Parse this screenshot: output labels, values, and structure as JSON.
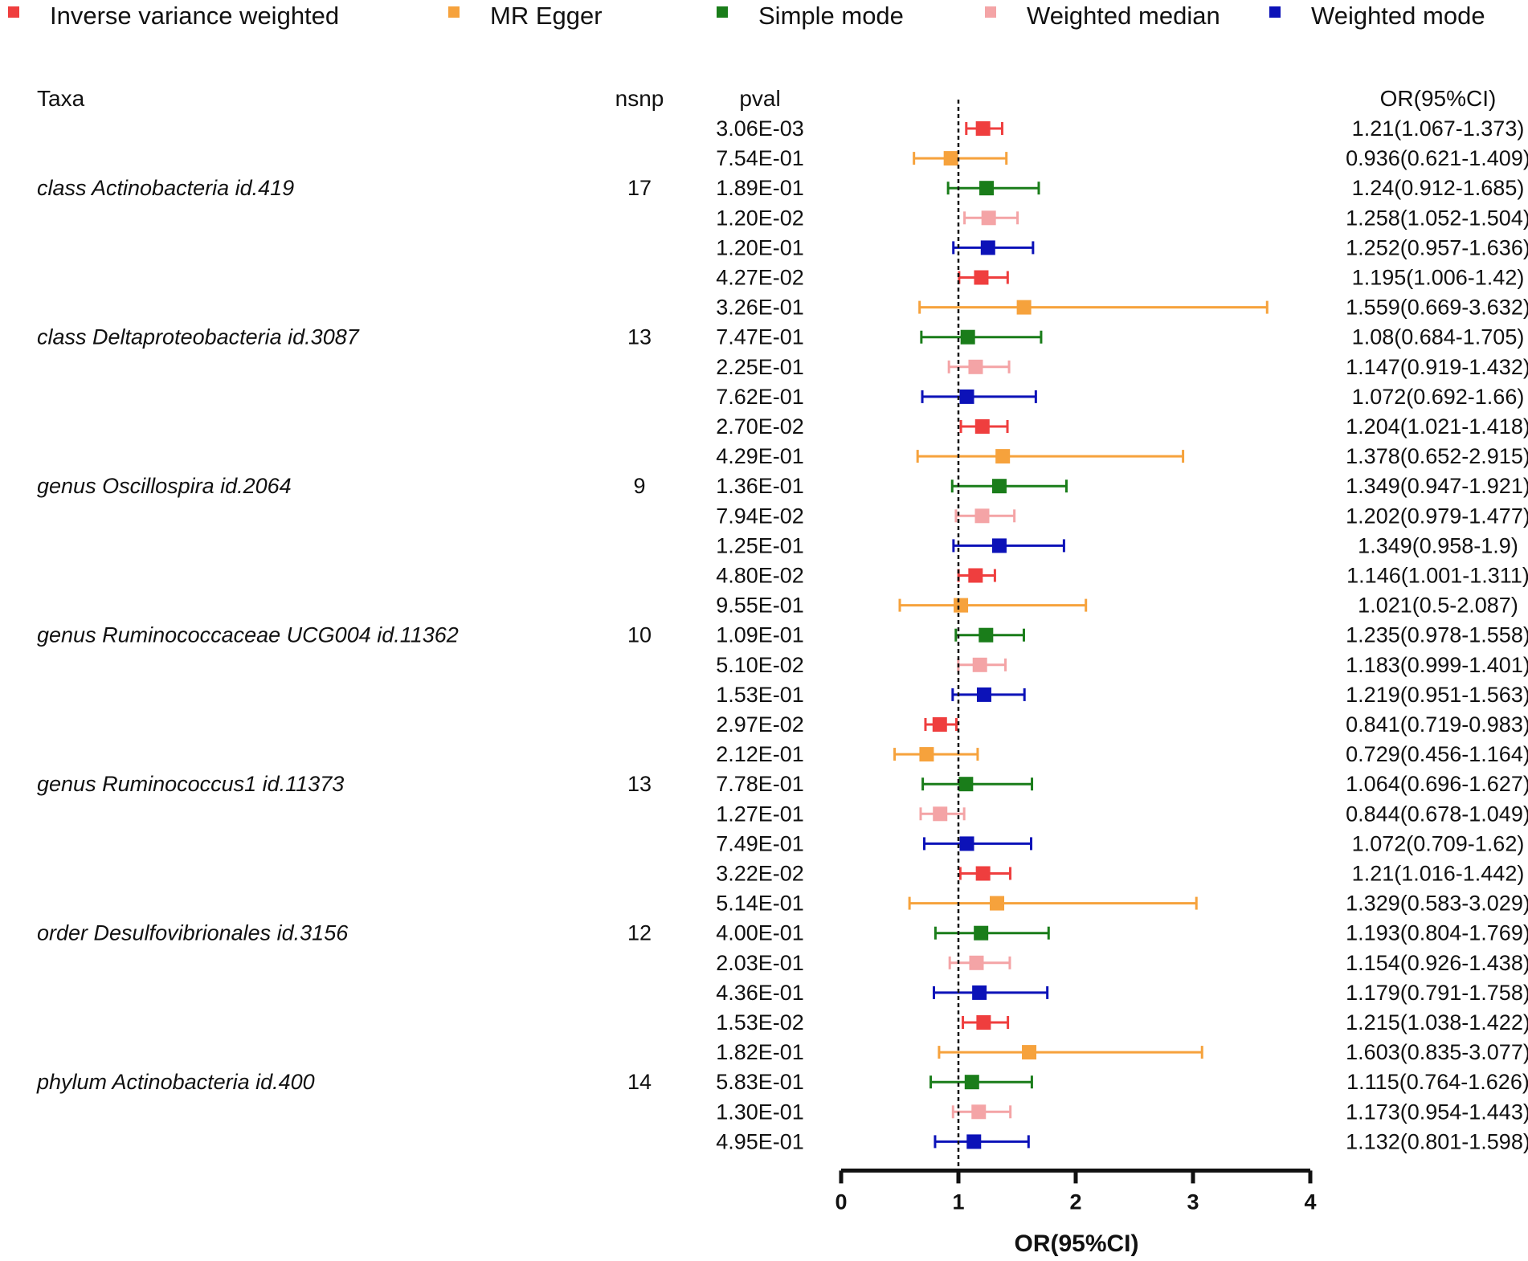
{
  "chart_data": {
    "type": "forest",
    "xlabel": "OR(95%CI)",
    "xlim": [
      0,
      4
    ],
    "xticks": [
      "0",
      "1",
      "2",
      "3",
      "4"
    ],
    "reference_line": 1,
    "headers": {
      "taxa": "Taxa",
      "nsnp": "nsnp",
      "pval": "pval",
      "or": "OR(95%CI)"
    },
    "methods": [
      {
        "name": "Inverse variance weighted",
        "color": "#ef3e3e"
      },
      {
        "name": "MR Egger",
        "color": "#f6a23c"
      },
      {
        "name": "Simple mode",
        "color": "#1a7d1a"
      },
      {
        "name": "Weighted median",
        "color": "#f4a4a6"
      },
      {
        "name": "Weighted mode",
        "color": "#0c12b8"
      }
    ],
    "groups": [
      {
        "taxa": "class Actinobacteria id.419",
        "nsnp": "17",
        "rows": [
          {
            "pval": "3.06E-03",
            "or": 1.21,
            "lo": 1.067,
            "hi": 1.373,
            "label": "1.21(1.067-1.373)"
          },
          {
            "pval": "7.54E-01",
            "or": 0.936,
            "lo": 0.621,
            "hi": 1.409,
            "label": "0.936(0.621-1.409)"
          },
          {
            "pval": "1.89E-01",
            "or": 1.24,
            "lo": 0.912,
            "hi": 1.685,
            "label": "1.24(0.912-1.685)"
          },
          {
            "pval": "1.20E-02",
            "or": 1.258,
            "lo": 1.052,
            "hi": 1.504,
            "label": "1.258(1.052-1.504)"
          },
          {
            "pval": "1.20E-01",
            "or": 1.252,
            "lo": 0.957,
            "hi": 1.636,
            "label": "1.252(0.957-1.636)"
          }
        ]
      },
      {
        "taxa": "class Deltaproteobacteria id.3087",
        "nsnp": "13",
        "rows": [
          {
            "pval": "4.27E-02",
            "or": 1.195,
            "lo": 1.006,
            "hi": 1.42,
            "label": "1.195(1.006-1.42)"
          },
          {
            "pval": "3.26E-01",
            "or": 1.559,
            "lo": 0.669,
            "hi": 3.632,
            "label": "1.559(0.669-3.632)"
          },
          {
            "pval": "7.47E-01",
            "or": 1.08,
            "lo": 0.684,
            "hi": 1.705,
            "label": "1.08(0.684-1.705)"
          },
          {
            "pval": "2.25E-01",
            "or": 1.147,
            "lo": 0.919,
            "hi": 1.432,
            "label": "1.147(0.919-1.432)"
          },
          {
            "pval": "7.62E-01",
            "or": 1.072,
            "lo": 0.692,
            "hi": 1.66,
            "label": "1.072(0.692-1.66)"
          }
        ]
      },
      {
        "taxa": "genus Oscillospira id.2064",
        "nsnp": "9",
        "rows": [
          {
            "pval": "2.70E-02",
            "or": 1.204,
            "lo": 1.021,
            "hi": 1.418,
            "label": "1.204(1.021-1.418)"
          },
          {
            "pval": "4.29E-01",
            "or": 1.378,
            "lo": 0.652,
            "hi": 2.915,
            "label": "1.378(0.652-2.915)"
          },
          {
            "pval": "1.36E-01",
            "or": 1.349,
            "lo": 0.947,
            "hi": 1.921,
            "label": "1.349(0.947-1.921)"
          },
          {
            "pval": "7.94E-02",
            "or": 1.202,
            "lo": 0.979,
            "hi": 1.477,
            "label": "1.202(0.979-1.477)"
          },
          {
            "pval": "1.25E-01",
            "or": 1.349,
            "lo": 0.958,
            "hi": 1.9,
            "label": "1.349(0.958-1.9)"
          }
        ]
      },
      {
        "taxa": "genus Ruminococcaceae UCG004 id.11362",
        "nsnp": "10",
        "rows": [
          {
            "pval": "4.80E-02",
            "or": 1.146,
            "lo": 1.001,
            "hi": 1.311,
            "label": "1.146(1.001-1.311)"
          },
          {
            "pval": "9.55E-01",
            "or": 1.021,
            "lo": 0.5,
            "hi": 2.087,
            "label": "1.021(0.5-2.087)"
          },
          {
            "pval": "1.09E-01",
            "or": 1.235,
            "lo": 0.978,
            "hi": 1.558,
            "label": "1.235(0.978-1.558)"
          },
          {
            "pval": "5.10E-02",
            "or": 1.183,
            "lo": 0.999,
            "hi": 1.401,
            "label": "1.183(0.999-1.401)"
          },
          {
            "pval": "1.53E-01",
            "or": 1.219,
            "lo": 0.951,
            "hi": 1.563,
            "label": "1.219(0.951-1.563)"
          }
        ]
      },
      {
        "taxa": "genus Ruminococcus1 id.11373",
        "nsnp": "13",
        "rows": [
          {
            "pval": "2.97E-02",
            "or": 0.841,
            "lo": 0.719,
            "hi": 0.983,
            "label": "0.841(0.719-0.983)"
          },
          {
            "pval": "2.12E-01",
            "or": 0.729,
            "lo": 0.456,
            "hi": 1.164,
            "label": "0.729(0.456-1.164)"
          },
          {
            "pval": "7.78E-01",
            "or": 1.064,
            "lo": 0.696,
            "hi": 1.627,
            "label": "1.064(0.696-1.627)"
          },
          {
            "pval": "1.27E-01",
            "or": 0.844,
            "lo": 0.678,
            "hi": 1.049,
            "label": "0.844(0.678-1.049)"
          },
          {
            "pval": "7.49E-01",
            "or": 1.072,
            "lo": 0.709,
            "hi": 1.62,
            "label": "1.072(0.709-1.62)"
          }
        ]
      },
      {
        "taxa": "order Desulfovibrionales id.3156",
        "nsnp": "12",
        "rows": [
          {
            "pval": "3.22E-02",
            "or": 1.21,
            "lo": 1.016,
            "hi": 1.442,
            "label": "1.21(1.016-1.442)"
          },
          {
            "pval": "5.14E-01",
            "or": 1.329,
            "lo": 0.583,
            "hi": 3.029,
            "label": "1.329(0.583-3.029)"
          },
          {
            "pval": "4.00E-01",
            "or": 1.193,
            "lo": 0.804,
            "hi": 1.769,
            "label": "1.193(0.804-1.769)"
          },
          {
            "pval": "2.03E-01",
            "or": 1.154,
            "lo": 0.926,
            "hi": 1.438,
            "label": "1.154(0.926-1.438)"
          },
          {
            "pval": "4.36E-01",
            "or": 1.179,
            "lo": 0.791,
            "hi": 1.758,
            "label": "1.179(0.791-1.758)"
          }
        ]
      },
      {
        "taxa": "phylum Actinobacteria id.400",
        "nsnp": "14",
        "rows": [
          {
            "pval": "1.53E-02",
            "or": 1.215,
            "lo": 1.038,
            "hi": 1.422,
            "label": "1.215(1.038-1.422)"
          },
          {
            "pval": "1.82E-01",
            "or": 1.603,
            "lo": 0.835,
            "hi": 3.077,
            "label": "1.603(0.835-3.077)"
          },
          {
            "pval": "5.83E-01",
            "or": 1.115,
            "lo": 0.764,
            "hi": 1.626,
            "label": "1.115(0.764-1.626)"
          },
          {
            "pval": "1.30E-01",
            "or": 1.173,
            "lo": 0.954,
            "hi": 1.443,
            "label": "1.173(0.954-1.443)"
          },
          {
            "pval": "4.95E-01",
            "or": 1.132,
            "lo": 0.801,
            "hi": 1.598,
            "label": "1.132(0.801-1.598)"
          }
        ]
      }
    ]
  }
}
